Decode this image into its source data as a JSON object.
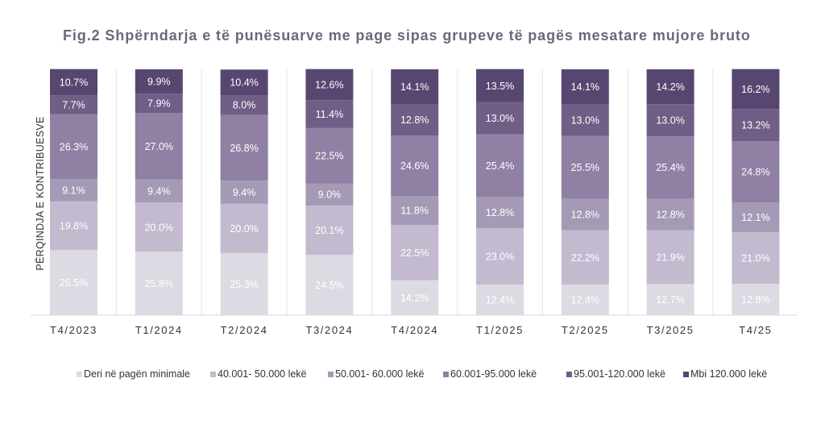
{
  "chart_data": {
    "type": "bar",
    "stacked": true,
    "title": "Fig.2  Shpërndarja e të punësuarve me page sipas grupeve të pagës mesatare mujore bruto",
    "ylabel": "PËRQINDJA E KONTRIBUESVE",
    "xlabel": "",
    "ylim": [
      0,
      100
    ],
    "grid": false,
    "legend_position": "bottom",
    "categories": [
      "T4/2023",
      "T1/2024",
      "T2/2024",
      "T3/2024",
      "T4/2024",
      "T1/2025",
      "T2/2025",
      "T3/2025",
      "T4/25"
    ],
    "series": [
      {
        "name": "Deri në pagën minimale",
        "color": "#dcdae2",
        "label_color": "#ffffff",
        "values": [
          26.5,
          25.8,
          25.3,
          24.5,
          14.2,
          12.4,
          12.4,
          12.7,
          12.8
        ],
        "labels": [
          "26.5%",
          "25.8%",
          "25.3%",
          "24.5%",
          "14.2%",
          "12.4%",
          "12.4%",
          "12.7%",
          "12.8%"
        ]
      },
      {
        "name": "40.001- 50.000 lekë",
        "color": "#c3bacf",
        "label_color": "#ffffff",
        "values": [
          19.8,
          20.0,
          20.0,
          20.1,
          22.5,
          23.0,
          22.2,
          21.9,
          21.0
        ],
        "labels": [
          "19.8%",
          "20.0%",
          "20.0%",
          "20.1%",
          "22.5%",
          "23.0%",
          "22.2%",
          "21.9%",
          "21.0%"
        ]
      },
      {
        "name": "50.001- 60.000 lekë",
        "color": "#a59ab5",
        "label_color": "#ffffff",
        "values": [
          9.1,
          9.4,
          9.4,
          9.0,
          11.8,
          12.8,
          12.8,
          12.8,
          12.1
        ],
        "labels": [
          "9.1%",
          "9.4%",
          "9.4%",
          "9.0%",
          "11.8%",
          "12.8%",
          "12.8%",
          "12.8%",
          "12.1%"
        ]
      },
      {
        "name": "60.001-95.000 lekë",
        "color": "#8f80a4",
        "label_color": "#ffffff",
        "values": [
          26.3,
          27.0,
          26.8,
          22.5,
          24.6,
          25.4,
          25.5,
          25.4,
          24.8
        ],
        "labels": [
          "26.3%",
          "27.0%",
          "26.8%",
          "22.5%",
          "24.6%",
          "25.4%",
          "25.5%",
          "25.4%",
          "24.8%"
        ]
      },
      {
        "name": "95.001-120.000 lekë",
        "color": "#6f5e86",
        "label_color": "#ffffff",
        "values": [
          7.7,
          7.9,
          8.0,
          11.4,
          12.8,
          13.0,
          13.0,
          13.0,
          13.2
        ],
        "labels": [
          "7.7%",
          "7.9%",
          "8.0%",
          "11.4%",
          "12.8%",
          "13.0%",
          "13.0%",
          "13.0%",
          "13.2%"
        ]
      },
      {
        "name": "Mbi 120.000 lekë",
        "color": "#574770",
        "label_color": "#ffffff",
        "values": [
          10.7,
          9.9,
          10.4,
          12.6,
          14.1,
          13.5,
          14.1,
          14.2,
          16.2
        ],
        "labels": [
          "10.7%",
          "9.9%",
          "10.4%",
          "12.6%",
          "14.1%",
          "13.5%",
          "14.1%",
          "14.2%",
          "16.2%"
        ]
      }
    ]
  }
}
